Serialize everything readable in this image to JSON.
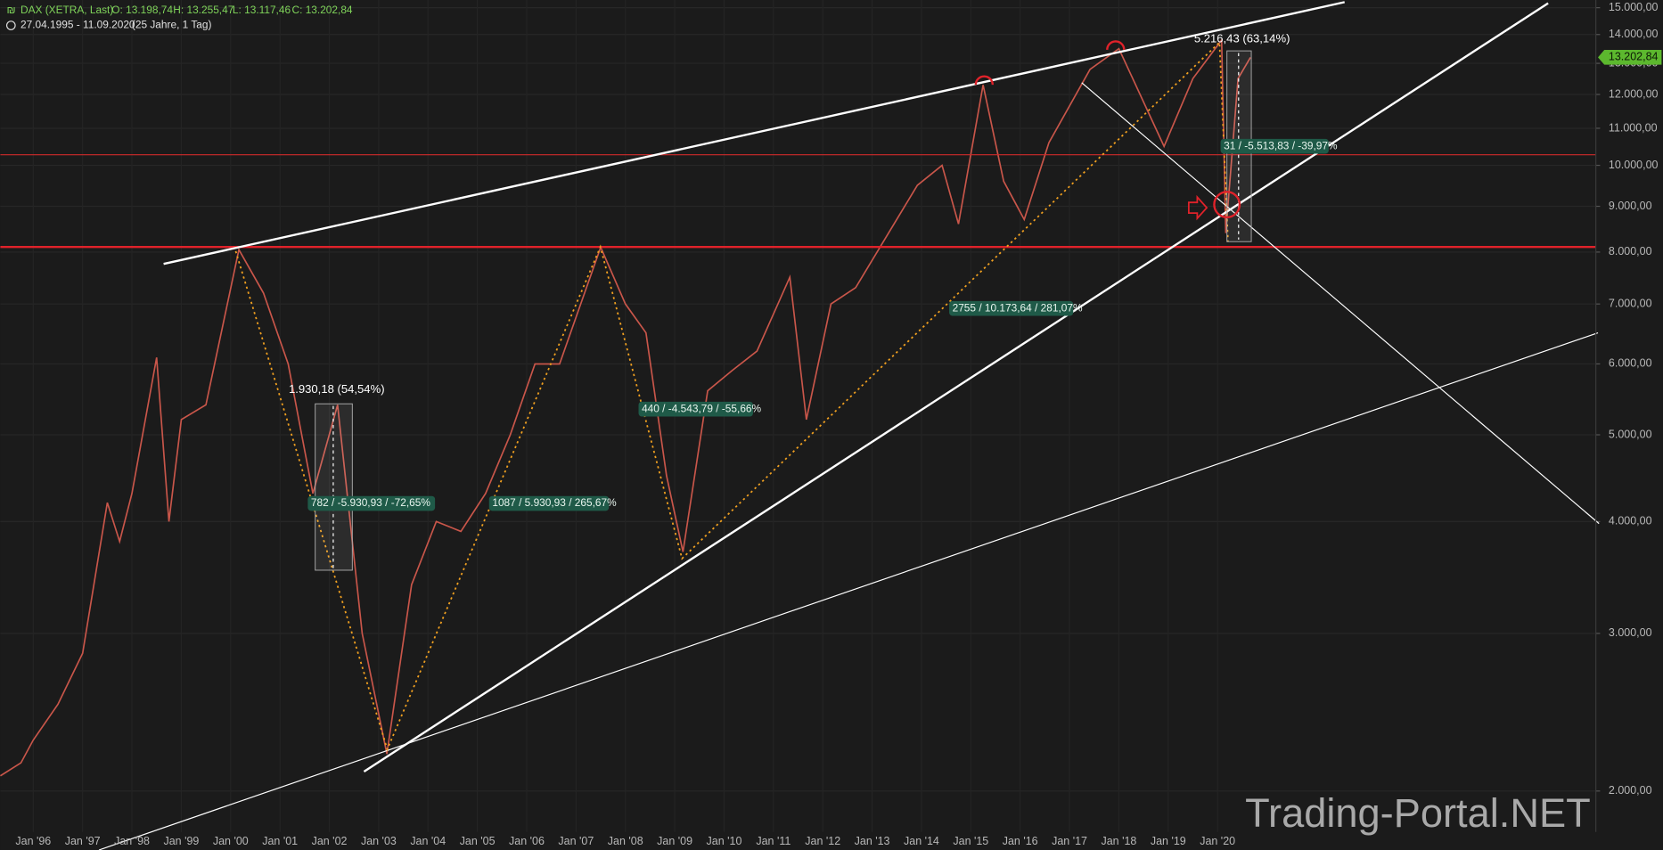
{
  "chart_data": {
    "type": "line",
    "title": "DAX (XETRA, Last)",
    "ohlc": [
      "O: 13.198,74",
      "H: 13.255,47",
      "L: 13.117,46",
      "C: 13.202,84"
    ],
    "period": "27.04.1995 - 11.09.2020",
    "span": "(25 Jahre, 1 Tag)",
    "log_scale": true,
    "grid": true,
    "x": [
      "1995-05",
      "1995-10",
      "1996-01",
      "1996-07",
      "1997-01",
      "1997-07",
      "1997-10",
      "1998-01",
      "1998-07",
      "1998-10",
      "1999-01",
      "1999-07",
      "2000-03",
      "2000-09",
      "2001-03",
      "2001-09",
      "2002-03",
      "2002-09",
      "2003-03",
      "2003-09",
      "2004-03",
      "2004-09",
      "2005-03",
      "2005-09",
      "2006-03",
      "2006-09",
      "2007-07",
      "2008-01",
      "2008-06",
      "2008-11",
      "2009-03",
      "2009-09",
      "2010-03",
      "2010-09",
      "2011-05",
      "2011-09",
      "2012-03",
      "2012-09",
      "2013-05",
      "2013-12",
      "2014-06",
      "2014-10",
      "2015-04",
      "2015-09",
      "2016-02",
      "2016-08",
      "2017-06",
      "2018-01",
      "2018-12",
      "2019-07",
      "2020-02",
      "2020-03",
      "2020-06",
      "2020-09"
    ],
    "series": [
      {
        "name": "DAX",
        "color": "#c9564a",
        "values": [
          2080,
          2150,
          2280,
          2500,
          2850,
          4200,
          3800,
          4300,
          6100,
          4000,
          5200,
          5400,
          8050,
          7200,
          6000,
          4300,
          5400,
          3000,
          2200,
          3400,
          4000,
          3900,
          4300,
          5000,
          6000,
          6000,
          8100,
          7000,
          6500,
          4500,
          3700,
          5600,
          5900,
          6200,
          7500,
          5200,
          7000,
          7300,
          8400,
          9500,
          10000,
          8600,
          12300,
          9600,
          8700,
          10600,
          12800,
          13500,
          10500,
          12500,
          13800,
          8400,
          12500,
          13200
        ]
      }
    ],
    "xlim": [
      "1995-05",
      "2027-09"
    ],
    "xticks": [
      {
        "value": "1996-01",
        "label": "Jan '96"
      },
      {
        "value": "1997-01",
        "label": "Jan '97"
      },
      {
        "value": "1998-01",
        "label": "Jan '98"
      },
      {
        "value": "1999-01",
        "label": "Jan '99"
      },
      {
        "value": "2000-01",
        "label": "Jan '00"
      },
      {
        "value": "2001-01",
        "label": "Jan '01"
      },
      {
        "value": "2002-01",
        "label": "Jan '02"
      },
      {
        "value": "2003-01",
        "label": "Jan '03"
      },
      {
        "value": "2004-01",
        "label": "Jan '04"
      },
      {
        "value": "2005-01",
        "label": "Jan '05"
      },
      {
        "value": "2006-01",
        "label": "Jan '06"
      },
      {
        "value": "2007-01",
        "label": "Jan '07"
      },
      {
        "value": "2008-01",
        "label": "Jan '08"
      },
      {
        "value": "2009-01",
        "label": "Jan '09"
      },
      {
        "value": "2010-01",
        "label": "Jan '10"
      },
      {
        "value": "2011-01",
        "label": "Jan '11"
      },
      {
        "value": "2012-01",
        "label": "Jan '12"
      },
      {
        "value": "2013-01",
        "label": "Jan '13"
      },
      {
        "value": "2014-01",
        "label": "Jan '14"
      },
      {
        "value": "2015-01",
        "label": "Jan '15"
      },
      {
        "value": "2016-01",
        "label": "Jan '16"
      },
      {
        "value": "2017-01",
        "label": "Jan '17"
      },
      {
        "value": "2018-01",
        "label": "Jan '18"
      },
      {
        "value": "2019-01",
        "label": "Jan '19"
      },
      {
        "value": "2020-01",
        "label": "Jan '20"
      }
    ],
    "ylim": [
      1800,
      15300
    ],
    "yticks": [
      {
        "value": 2000,
        "label": "2.000,00"
      },
      {
        "value": 3000,
        "label": "3.000,00"
      },
      {
        "value": 4000,
        "label": "4.000,00"
      },
      {
        "value": 5000,
        "label": "5.000,00"
      },
      {
        "value": 6000,
        "label": "6.000,00"
      },
      {
        "value": 7000,
        "label": "7.000,00"
      },
      {
        "value": 8000,
        "label": "8.000,00"
      },
      {
        "value": 9000,
        "label": "9.000,00"
      },
      {
        "value": 10000,
        "label": "10.000,00"
      },
      {
        "value": 11000,
        "label": "11.000,00"
      },
      {
        "value": 12000,
        "label": "12.000,00"
      },
      {
        "value": 13000,
        "label": "13.000,00"
      },
      {
        "value": 14000,
        "label": "14.000,00"
      },
      {
        "value": 15000,
        "label": "15.000,00"
      }
    ],
    "last_price": {
      "value": 13202.84,
      "label": "13.202,84"
    },
    "annotations": [
      "5.216,43 (63,14%)",
      "31 / -5.513,83 / -39,97%",
      "2755 / 10.173,64 / 281,07%",
      "440 / -4.543,79 / -55,66%",
      "1.930,18 (54,54%)",
      "782 / -5.930,93 / -72,65%",
      "1087 / 5.930,93 / 265,67%"
    ],
    "watermark": "Trading-Portal.NET"
  }
}
